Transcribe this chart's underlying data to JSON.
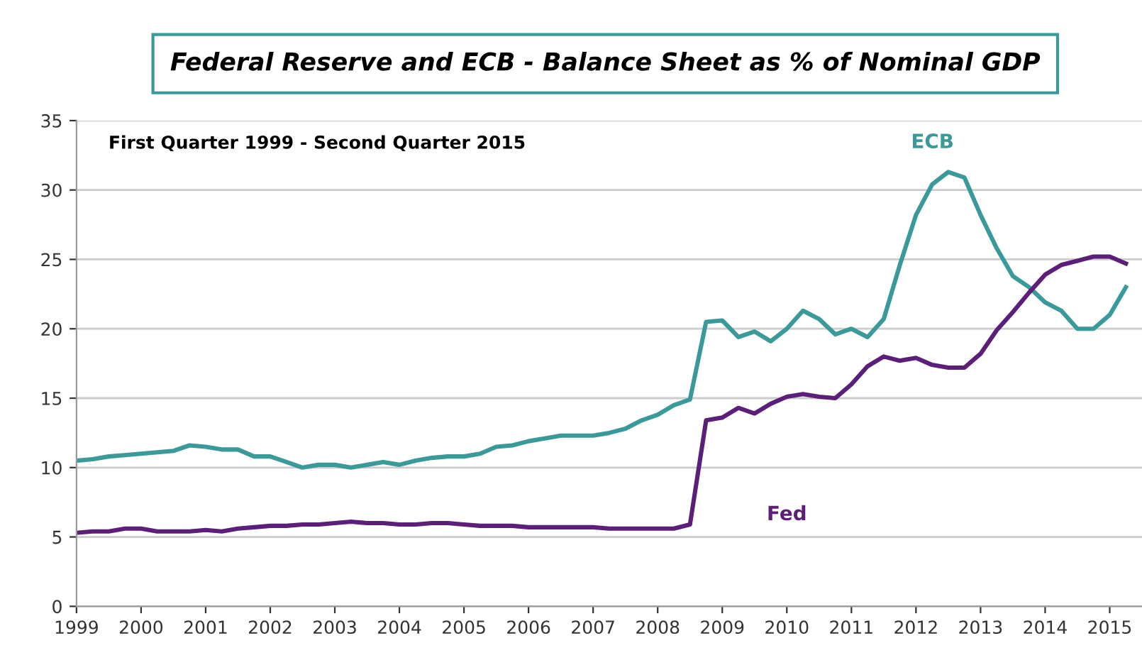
{
  "chart_data": {
    "type": "line",
    "title": "Federal Reserve and ECB - Balance Sheet as % of Nominal GDP",
    "subtitle": "First Quarter 1999 - Second Quarter 2015",
    "x": [
      1999,
      1999.25,
      1999.5,
      1999.75,
      2000,
      2000.25,
      2000.5,
      2000.75,
      2001,
      2001.25,
      2001.5,
      2001.75,
      2002,
      2002.25,
      2002.5,
      2002.75,
      2003,
      2003.25,
      2003.5,
      2003.75,
      2004,
      2004.25,
      2004.5,
      2004.75,
      2005,
      2005.25,
      2005.5,
      2005.75,
      2006,
      2006.25,
      2006.5,
      2006.75,
      2007,
      2007.25,
      2007.5,
      2007.75,
      2008,
      2008.25,
      2008.5,
      2008.75,
      2009,
      2009.25,
      2009.5,
      2009.75,
      2010,
      2010.25,
      2010.5,
      2010.75,
      2011,
      2011.25,
      2011.5,
      2011.75,
      2012,
      2012.25,
      2012.5,
      2012.75,
      2013,
      2013.25,
      2013.5,
      2013.75,
      2014,
      2014.25,
      2014.5,
      2014.75,
      2015,
      2015.25
    ],
    "series": [
      {
        "name": "ECB",
        "color": "#3a9a9a",
        "values": [
          10.5,
          10.6,
          10.8,
          10.9,
          11.0,
          11.1,
          11.2,
          11.6,
          11.5,
          11.3,
          11.3,
          10.8,
          10.8,
          10.4,
          10.0,
          10.2,
          10.2,
          10.0,
          10.2,
          10.4,
          10.2,
          10.5,
          10.7,
          10.8,
          10.8,
          11.0,
          11.5,
          11.6,
          11.9,
          12.1,
          12.3,
          12.3,
          12.3,
          12.5,
          12.8,
          13.4,
          13.8,
          14.5,
          14.9,
          20.5,
          20.6,
          19.4,
          19.8,
          19.1,
          20.0,
          21.3,
          20.7,
          19.6,
          20.0,
          19.4,
          20.7,
          24.6,
          28.2,
          30.4,
          31.3,
          30.9,
          28.2,
          25.8,
          23.8,
          23.0,
          21.9,
          21.3,
          20.0,
          20.0,
          21.0,
          23.0
        ]
      },
      {
        "name": "Fed",
        "color": "#5b1f7a",
        "values": [
          5.3,
          5.4,
          5.4,
          5.6,
          5.6,
          5.4,
          5.4,
          5.4,
          5.5,
          5.4,
          5.6,
          5.7,
          5.8,
          5.8,
          5.9,
          5.9,
          6.0,
          6.1,
          6.0,
          6.0,
          5.9,
          5.9,
          6.0,
          6.0,
          5.9,
          5.8,
          5.8,
          5.8,
          5.7,
          5.7,
          5.7,
          5.7,
          5.7,
          5.6,
          5.6,
          5.6,
          5.6,
          5.6,
          5.9,
          13.4,
          13.6,
          14.3,
          13.9,
          14.6,
          15.1,
          15.3,
          15.1,
          15.0,
          16.0,
          17.3,
          18.0,
          17.7,
          17.9,
          17.4,
          17.2,
          17.2,
          18.2,
          19.9,
          21.2,
          22.6,
          23.9,
          24.6,
          24.9,
          25.2,
          25.2,
          24.7
        ]
      }
    ],
    "xlim": [
      1999,
      2015.5
    ],
    "xticks": [
      1999,
      2000,
      2001,
      2002,
      2003,
      2004,
      2005,
      2006,
      2007,
      2008,
      2009,
      2010,
      2011,
      2012,
      2013,
      2014,
      2015
    ],
    "ylim": [
      0,
      35
    ],
    "yticks": [
      0,
      5,
      10,
      15,
      20,
      25,
      30,
      35
    ],
    "grid": "y",
    "legend": false,
    "marker": "none",
    "line_style": "solid"
  }
}
